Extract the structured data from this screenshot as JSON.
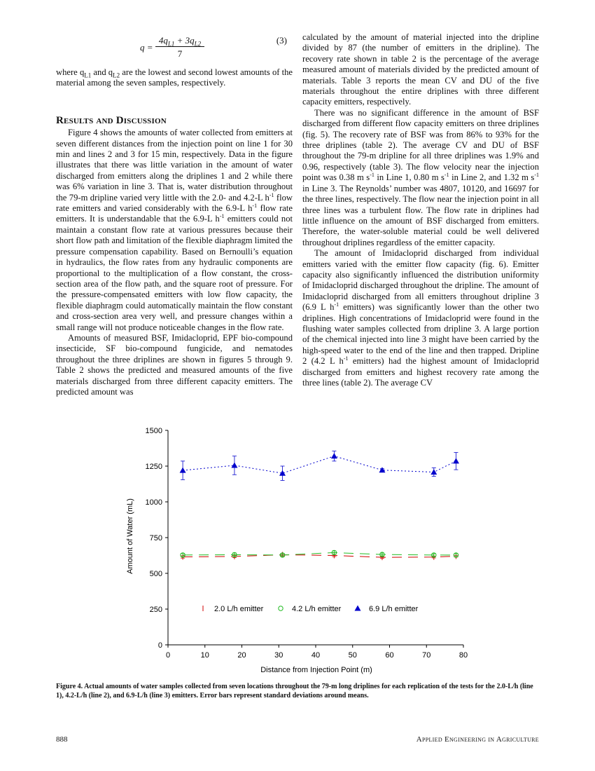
{
  "equation": {
    "lhs": "q =",
    "numerator": "4q",
    "num_sub1": "L1",
    "num_mid": " + 3q",
    "num_sub2": "L2",
    "denominator": "7",
    "number": "(3)"
  },
  "left_column": {
    "where_a": "where q",
    "where_sub1": "L1",
    "where_b": " and q",
    "where_sub2": "L2",
    "where_c": " are the lowest and second lowest amounts of the material among the seven samples, respectively.",
    "heading": "Results and Discussion",
    "p1_a": "Figure 4 shows the amounts of water collected from emitters at seven different distances from the injection point on line 1 for 30 min and lines 2 and 3 for 15 min, respectively. Data in the figure illustrates that there was little variation in the amount of water discharged from emitters along the driplines 1 and 2 while there was 6% variation in line 3. That is, water distribution throughout the 79-m dripline varied very little with the 2.0- and 4.2-L h",
    "p1_sup1": "-1",
    "p1_b": " flow rate emitters and varied considerably with the 6.9-L h",
    "p1_sup2": "-1",
    "p1_c": " flow rate emitters. It is understandable that the 6.9-L h",
    "p1_sup3": "-1",
    "p1_d": " emitters could not maintain a constant flow rate at various pressures because their short flow path and limitation of the flexible diaphragm limited the pressure compensation capability. Based on Bernoulli’s equation in hydraulics, the flow rates from any hydraulic components are proportional to the multiplication of a flow constant, the cross-section area of the flow path, and the square root of pressure. For the pressure-compensated emitters with low flow capacity, the flexible diaphragm could automatically maintain the flow constant and cross-section area very well, and pressure changes within a small range will not produce noticeable changes in the flow rate.",
    "p2": "Amounts of measured BSF, Imidacloprid, EPF bio-compound insecticide, SF bio-compound fungicide, and nematodes throughout the three driplines are shown in figures 5 through 9. Table 2 shows the predicted and measured amounts of the five materials discharged from three different capacity emitters. The predicted amount was"
  },
  "right_column": {
    "p1": "calculated by the amount of material injected into the dripline divided by 87 (the number of emitters in the dripline). The recovery rate shown in table 2 is the percentage of the average measured amount of materials divided by the predicted amount of materials. Table 3 reports the mean CV and DU of the five materials throughout the entire driplines with three different capacity emitters, respectively.",
    "p2_a": "There was no significant difference in the amount of BSF discharged from different flow capacity emitters on three driplines (fig. 5). The recovery rate of BSF was from 86% to 93% for the three driplines (table 2). The average CV and DU of BSF throughout the 79-m dripline for all three driplines was 1.9% and 0.96, respectively (table 3). The flow velocity near the injection point was 0.38 m s",
    "p2_sup1": "-1",
    "p2_b": " in Line 1, 0.80 m s",
    "p2_sup2": "-1",
    "p2_c": " in Line 2, and 1.32 m s",
    "p2_sup3": "-1",
    "p2_d": " in Line 3. The Reynolds’ number was 4807, 10120, and 16697 for the three lines, respectively. The flow near the injection point in all three lines was a turbulent flow. The flow rate in driplines had little influence on the amount of BSF discharged from emitters. Therefore, the water-soluble material could be well delivered throughout driplines regardless of the emitter capacity.",
    "p3_a": "The amount of Imidacloprid discharged from individual emitters varied with the emitter flow capacity (fig. 6). Emitter capacity also significantly influenced the distribution uniformity of Imidacloprid discharged throughout the dripline. The amount of Imidacloprid discharged from all emitters throughout dripline 3 (6.9 L h",
    "p3_sup1": "-1",
    "p3_b": " emitters) was significantly lower than the other two driplines. High concentrations of Imidacloprid were found in the flushing water samples collected from dripline 3. A large portion of the chemical injected into line 3 might have been carried by the high-speed water to the end of the line and then trapped. Dripline 2 (4.2 L h",
    "p3_sup2": "-1",
    "p3_c": " emitters) had the highest amount of Imidacloprid discharged from emitters and highest recovery rate among the three lines (table 2). The average CV"
  },
  "chart_data": {
    "type": "scatter",
    "xlabel": "Distance from Injection Point (m)",
    "ylabel": "Amount of Water (mL)",
    "xlim": [
      0,
      80
    ],
    "ylim": [
      0,
      1500
    ],
    "xticks": [
      0,
      10,
      20,
      30,
      40,
      50,
      60,
      70,
      80
    ],
    "yticks": [
      0,
      250,
      500,
      750,
      1000,
      1250,
      1500
    ],
    "grid": false,
    "legend_position": "inside-bottom",
    "x": [
      4,
      18,
      31,
      45,
      58,
      72,
      78
    ],
    "series": [
      {
        "name": "2.0 L/h emitter",
        "marker": "tick",
        "color": "#d00000",
        "line_style": "long-dash",
        "values": [
          615,
          618,
          630,
          625,
          612,
          614,
          620
        ],
        "errors": [
          8,
          8,
          8,
          8,
          6,
          6,
          6
        ]
      },
      {
        "name": "4.2 L/h emitter",
        "marker": "circle",
        "color": "#22bb22",
        "line_style": "long-dash",
        "values": [
          628,
          630,
          628,
          645,
          632,
          628,
          628
        ],
        "errors": [
          12,
          12,
          12,
          12,
          10,
          10,
          10
        ]
      },
      {
        "name": "6.9 L/h emitter",
        "marker": "triangle",
        "color": "#0000cc",
        "line_style": "dotted",
        "values": [
          1220,
          1255,
          1200,
          1320,
          1222,
          1208,
          1285
        ],
        "errors": [
          65,
          65,
          50,
          35,
          10,
          30,
          60
        ]
      }
    ]
  },
  "caption": "Figure 4. Actual amounts of water samples collected from seven locations throughout the 79-m long driplines for each replication of the tests for the 2.0-L/h (line 1), 4.2-L/h (line 2), and 6.9-L/h (line 3) emitters. Error bars represent standard deviations around means.",
  "footer": {
    "page_number": "888",
    "journal": "Applied Engineering in Agriculture"
  }
}
